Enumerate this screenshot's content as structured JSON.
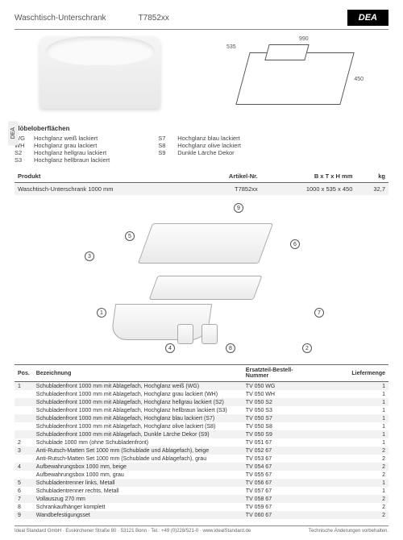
{
  "header": {
    "title": "Waschtisch-Unterschrank",
    "model": "T7852xx",
    "brand": "DEA"
  },
  "side_tab": "DEA",
  "dimensions": {
    "width": "990",
    "depth": "535",
    "height": "450"
  },
  "surfaces": {
    "title": "Möbeloberflächen",
    "col1": [
      {
        "code": "WG",
        "label": "Hochglanz weiß lackiert"
      },
      {
        "code": "WH",
        "label": "Hochglanz grau lackiert"
      },
      {
        "code": "S2",
        "label": "Hochglanz hellgrau lackiert"
      },
      {
        "code": "S3",
        "label": "Hochglanz hellbraun lackiert"
      }
    ],
    "col2": [
      {
        "code": "S7",
        "label": "Hochglanz blau lackiert"
      },
      {
        "code": "S8",
        "label": "Hochglanz olive lackiert"
      },
      {
        "code": "S9",
        "label": "Dunkle Lärche Dekor"
      }
    ]
  },
  "product_table": {
    "headers": {
      "prod": "Produkt",
      "art": "Artikel-Nr.",
      "dim": "B x T x H mm",
      "kg": "kg"
    },
    "row": {
      "prod": "Waschtisch-Unterschrank 1000 mm",
      "art": "T7852xx",
      "dim": "1000 x 535 x 450",
      "kg": "32,7"
    }
  },
  "callouts": [
    "1",
    "2",
    "3",
    "4",
    "5",
    "6",
    "7",
    "8",
    "9"
  ],
  "parts": {
    "headers": {
      "pos": "Pos.",
      "desc": "Bezeichnung",
      "num": "Ersatzteil-Bestell-Nummer",
      "qty": "Liefermenge"
    },
    "rows": [
      {
        "pos": "1",
        "desc": "Schubladenfront 1000 mm mit Ablagefach, Hochglanz weiß (WG)",
        "num": "TV 050 WG",
        "qty": "1",
        "shade": true
      },
      {
        "pos": "",
        "desc": "Schubladenfront 1000 mm mit Ablagefach, Hochglanz grau lackiert (WH)",
        "num": "TV 050 WH",
        "qty": "1",
        "shade": false
      },
      {
        "pos": "",
        "desc": "Schubladenfront 1000 mm mit Ablagefach, Hochglanz hellgrau lackiert (S2)",
        "num": "TV 050 S2",
        "qty": "1",
        "shade": true
      },
      {
        "pos": "",
        "desc": "Schubladenfront 1000 mm mit Ablagefach, Hochglanz hellbraun lackiert (S3)",
        "num": "TV 050 S3",
        "qty": "1",
        "shade": false
      },
      {
        "pos": "",
        "desc": "Schubladenfront 1000 mm mit Ablagefach, Hochglanz blau lackiert (S7)",
        "num": "TV 050 S7",
        "qty": "1",
        "shade": true
      },
      {
        "pos": "",
        "desc": "Schubladenfront 1000 mm mit Ablagefach, Hochglanz olive lackiert (S8)",
        "num": "TV 050 S8",
        "qty": "1",
        "shade": false
      },
      {
        "pos": "",
        "desc": "Schubladenfront 1000 mm mit Ablagefach, Dunkle Lärche Dekor (S9)",
        "num": "TV 050 S9",
        "qty": "1",
        "shade": true
      },
      {
        "pos": "2",
        "desc": "Schublade 1000 mm (ohne Schubladenfront)",
        "num": "TV 051 67",
        "qty": "1",
        "shade": false
      },
      {
        "pos": "3",
        "desc": "Anti-Rutsch-Matten Set 1000 mm (Schublade und Ablagefach), beige",
        "num": "TV 052 67",
        "qty": "2",
        "shade": true
      },
      {
        "pos": "",
        "desc": "Anti-Rutsch-Matten Set 1000 mm (Schublade und Ablagefach), grau",
        "num": "TV 053 67",
        "qty": "2",
        "shade": false
      },
      {
        "pos": "4",
        "desc": "Aufbewahrungsbox 1000 mm, beige",
        "num": "TV 054 67",
        "qty": "2",
        "shade": true
      },
      {
        "pos": "",
        "desc": "Aufbewahrungsbox 1000 mm, grau",
        "num": "TV 055 67",
        "qty": "2",
        "shade": false
      },
      {
        "pos": "5",
        "desc": "Schubladentrenner links, Metall",
        "num": "TV 056 67",
        "qty": "1",
        "shade": true
      },
      {
        "pos": "6",
        "desc": "Schubladentrenner rechts, Metall",
        "num": "TV 057 67",
        "qty": "1",
        "shade": false
      },
      {
        "pos": "7",
        "desc": "Vollauszug 270 mm",
        "num": "TV 058 67",
        "qty": "2",
        "shade": true
      },
      {
        "pos": "8",
        "desc": "Schrankaufhänger komplett",
        "num": "TV 059 67",
        "qty": "2",
        "shade": false
      },
      {
        "pos": "9",
        "desc": "Wandbefestigungsset",
        "num": "TV 060 67",
        "qty": "2",
        "shade": true
      }
    ]
  },
  "footer": {
    "left": "Ideal Standard GmbH · Euskirchener Straße 80 · 53121 Bonn · Tel.: +49 (0)228/521-0 · www.idealStandard.de",
    "right": "Technische Änderungen vorbehalten."
  }
}
